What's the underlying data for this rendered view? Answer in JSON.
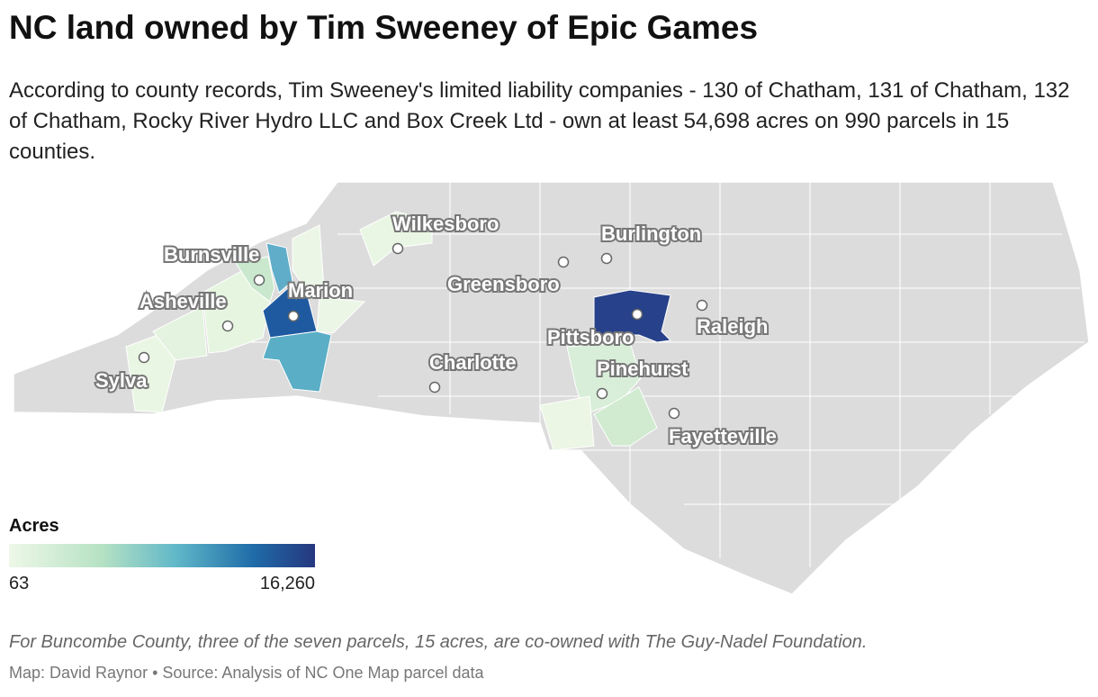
{
  "header": {
    "title": "NC land owned by Tim Sweeney of Epic Games",
    "subtitle": "According to county records, Tim Sweeney's limited liability companies - 130 of Chatham, 131 of Chatham, 132 of Chatham, Rocky River Hydro LLC and Box Creek Ltd - own at least 54,698 acres on 990 parcels in 15 counties."
  },
  "map": {
    "cities": [
      "Wilkesboro",
      "Burlington",
      "Burnsville",
      "Greensboro",
      "Marion",
      "Asheville",
      "Raleigh",
      "Pittsboro",
      "Sylva",
      "Charlotte",
      "Pinehurst",
      "Fayetteville"
    ]
  },
  "legend": {
    "title": "Acres",
    "min": 63,
    "max": {
      "value": 16260,
      "label": "16,260"
    }
  },
  "footer": {
    "note": "For Buncombe County, three of the seven parcels, 15 acres, are co-owned with The Guy-Nadel Foundation.",
    "source": "Map: David Raynor • Source: Analysis of NC One Map parcel data"
  }
}
